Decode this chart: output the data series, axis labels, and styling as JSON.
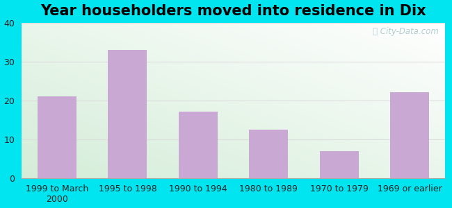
{
  "title": "Year householders moved into residence in Dix",
  "categories": [
    "1999 to March\n2000",
    "1995 to 1998",
    "1990 to 1994",
    "1980 to 1989",
    "1970 to 1979",
    "1969 or earlier"
  ],
  "values": [
    21,
    33,
    17,
    12.5,
    7,
    22
  ],
  "bar_color": "#c9a8d4",
  "ylim": [
    0,
    40
  ],
  "yticks": [
    0,
    10,
    20,
    30,
    40
  ],
  "background_outer": "#00e5f0",
  "background_inner_topleft": "#d4edd8",
  "background_inner_bottomright": "#ffffff",
  "grid_color": "#dddddd",
  "title_fontsize": 15,
  "tick_fontsize": 9,
  "watermark": "City-Data.com"
}
